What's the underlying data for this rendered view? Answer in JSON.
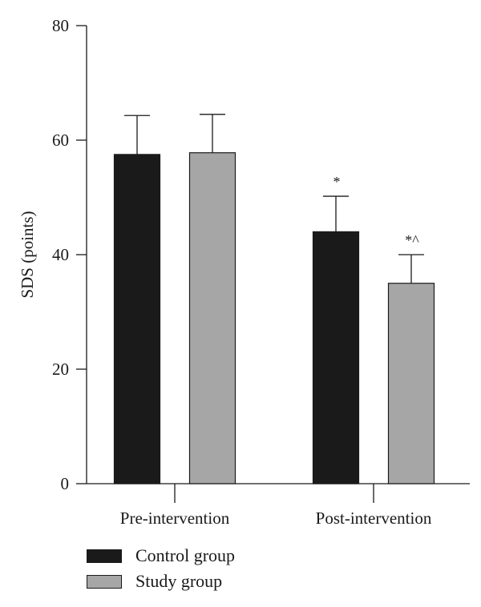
{
  "chart_data": {
    "type": "bar",
    "categories": [
      "Pre-intervention",
      "Post-intervention"
    ],
    "series": [
      {
        "name": "Control group",
        "color": "#1a1a1a",
        "values": [
          57.5,
          44.0
        ],
        "errors": [
          6.8,
          6.2
        ],
        "annotations": [
          "",
          "*"
        ]
      },
      {
        "name": "Study group",
        "color": "#a6a6a6",
        "values": [
          57.8,
          35.0
        ],
        "errors": [
          6.7,
          5.0
        ],
        "annotations": [
          "",
          "*^"
        ]
      }
    ],
    "title": "",
    "xlabel": "",
    "ylabel": "SDS (points)",
    "ylim": [
      0,
      80
    ],
    "yticks": [
      0,
      20,
      40,
      60,
      80
    ],
    "grid": false,
    "legend_position": "bottom-left"
  }
}
